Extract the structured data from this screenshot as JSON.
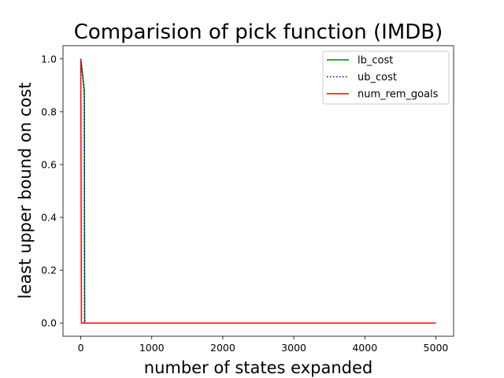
{
  "chart_data": {
    "type": "line",
    "title": "Comparision of pick function (IMDB)",
    "xlabel": "number of states expanded",
    "ylabel": "least upper bound on cost",
    "xlim": [
      -250,
      5250
    ],
    "ylim": [
      -0.05,
      1.05
    ],
    "xticks": [
      "0",
      "1000",
      "2000",
      "3000",
      "4000",
      "5000"
    ],
    "xtick_values": [
      0,
      1000,
      2000,
      3000,
      4000,
      5000
    ],
    "yticks": [
      "0.0",
      "0.2",
      "0.4",
      "0.6",
      "0.8",
      "1.0"
    ],
    "ytick_values": [
      0.0,
      0.2,
      0.4,
      0.6,
      0.8,
      1.0
    ],
    "grid": false,
    "legend_position": "top-right",
    "series": [
      {
        "name": "lb_cost",
        "color": "#008000",
        "style": "solid",
        "x": [
          0,
          30,
          50,
          55,
          60,
          5000
        ],
        "y": [
          1.0,
          0.93,
          0.88,
          0.0,
          0.0,
          0.0
        ]
      },
      {
        "name": "ub_cost",
        "color": "#0000bf",
        "style": "dotted",
        "x": [
          0,
          30,
          50,
          55,
          60,
          5000
        ],
        "y": [
          1.0,
          0.93,
          0.86,
          0.0,
          0.0,
          0.0
        ]
      },
      {
        "name": "num_rem_goals",
        "color": "#ff0000",
        "style": "solid",
        "x": [
          0,
          5,
          10,
          5000
        ],
        "y": [
          1.0,
          0.5,
          0.0,
          0.0
        ]
      }
    ]
  }
}
